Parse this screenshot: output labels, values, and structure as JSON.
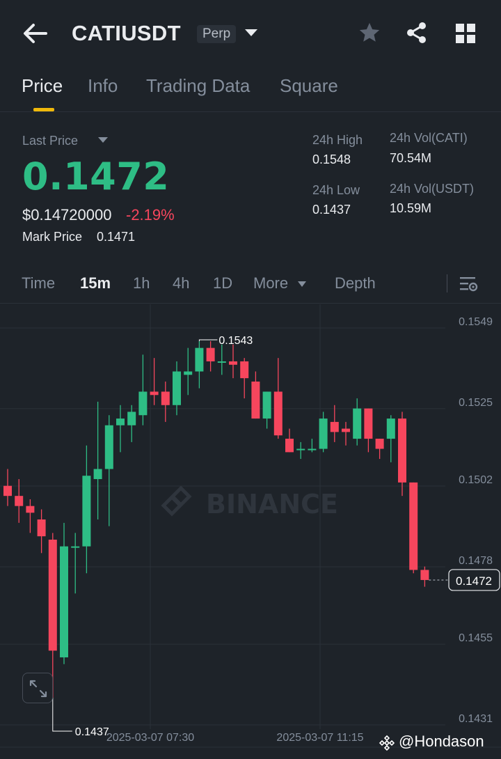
{
  "header": {
    "title": "CATIUSDT",
    "badge": "Perp"
  },
  "tabs": [
    {
      "label": "Price",
      "active": true
    },
    {
      "label": "Info",
      "active": false
    },
    {
      "label": "Trading Data",
      "active": false
    },
    {
      "label": "Square",
      "active": false
    }
  ],
  "price": {
    "last_price_label": "Last Price",
    "last_price": "0.1472",
    "usd_price": "$0.14720000",
    "change": "-2.19%",
    "mark_price_label": "Mark Price",
    "mark_price": "0.1471"
  },
  "stats": {
    "high_label": "24h High",
    "high": "0.1548",
    "low_label": "24h Low",
    "low": "0.1437",
    "vol_base_label": "24h Vol(CATI)",
    "vol_base": "70.54M",
    "vol_quote_label": "24h Vol(USDT)",
    "vol_quote": "10.59M"
  },
  "timeframes": {
    "time": "Time",
    "m15": "15m",
    "h1": "1h",
    "h4": "4h",
    "d1": "1D",
    "more": "More",
    "depth": "Depth",
    "active": "15m"
  },
  "chart": {
    "watermark": "BINANCE",
    "high_marker": "0.1543",
    "low_marker": "0.1437",
    "current_price_tag": "0.1472",
    "y_ticks": [
      "0.1549",
      "0.1525",
      "0.1502",
      "0.1478",
      "0.1455",
      "0.1431"
    ],
    "x_ticks": [
      "2025-03-07 07:30",
      "2025-03-07 11:15"
    ]
  },
  "chart_data": {
    "type": "candlestick",
    "interval": "15m",
    "ylim": [
      0.1431,
      0.1549
    ],
    "grid": true,
    "candles": [
      {
        "o": 0.15,
        "h": 0.1505,
        "l": 0.1494,
        "c": 0.1497
      },
      {
        "o": 0.1497,
        "h": 0.1502,
        "l": 0.1489,
        "c": 0.1494
      },
      {
        "o": 0.1494,
        "h": 0.1496,
        "l": 0.1486,
        "c": 0.1492
      },
      {
        "o": 0.149,
        "h": 0.1493,
        "l": 0.148,
        "c": 0.1485
      },
      {
        "o": 0.1484,
        "h": 0.1486,
        "l": 0.1437,
        "c": 0.1451
      },
      {
        "o": 0.1449,
        "h": 0.1489,
        "l": 0.1447,
        "c": 0.1482
      },
      {
        "o": 0.1482,
        "h": 0.1486,
        "l": 0.1468,
        "c": 0.1482
      },
      {
        "o": 0.1482,
        "h": 0.1512,
        "l": 0.1474,
        "c": 0.1503
      },
      {
        "o": 0.1502,
        "h": 0.1525,
        "l": 0.149,
        "c": 0.1505
      },
      {
        "o": 0.1505,
        "h": 0.1521,
        "l": 0.1488,
        "c": 0.1518
      },
      {
        "o": 0.1518,
        "h": 0.1524,
        "l": 0.151,
        "c": 0.152
      },
      {
        "o": 0.1518,
        "h": 0.1524,
        "l": 0.1513,
        "c": 0.1522
      },
      {
        "o": 0.1521,
        "h": 0.1539,
        "l": 0.1518,
        "c": 0.1528
      },
      {
        "o": 0.1528,
        "h": 0.1538,
        "l": 0.1524,
        "c": 0.1527
      },
      {
        "o": 0.1528,
        "h": 0.1531,
        "l": 0.1519,
        "c": 0.1524
      },
      {
        "o": 0.1524,
        "h": 0.1537,
        "l": 0.1521,
        "c": 0.1534
      },
      {
        "o": 0.1533,
        "h": 0.1541,
        "l": 0.1527,
        "c": 0.1534
      },
      {
        "o": 0.1534,
        "h": 0.1543,
        "l": 0.1529,
        "c": 0.1541
      },
      {
        "o": 0.1541,
        "h": 0.1543,
        "l": 0.1534,
        "c": 0.1537
      },
      {
        "o": 0.1537,
        "h": 0.1542,
        "l": 0.1533,
        "c": 0.1537
      },
      {
        "o": 0.1537,
        "h": 0.1542,
        "l": 0.1532,
        "c": 0.1536
      },
      {
        "o": 0.1537,
        "h": 0.1538,
        "l": 0.1526,
        "c": 0.1532
      },
      {
        "o": 0.1531,
        "h": 0.1534,
        "l": 0.152,
        "c": 0.152
      },
      {
        "o": 0.152,
        "h": 0.1528,
        "l": 0.1517,
        "c": 0.1528
      },
      {
        "o": 0.1528,
        "h": 0.1538,
        "l": 0.1514,
        "c": 0.1515
      },
      {
        "o": 0.1514,
        "h": 0.1517,
        "l": 0.151,
        "c": 0.151
      },
      {
        "o": 0.1511,
        "h": 0.1513,
        "l": 0.1508,
        "c": 0.1511
      },
      {
        "o": 0.1511,
        "h": 0.1514,
        "l": 0.151,
        "c": 0.1511
      },
      {
        "o": 0.1511,
        "h": 0.1522,
        "l": 0.151,
        "c": 0.152
      },
      {
        "o": 0.1519,
        "h": 0.1524,
        "l": 0.1513,
        "c": 0.1516
      },
      {
        "o": 0.1517,
        "h": 0.1519,
        "l": 0.1512,
        "c": 0.1516
      },
      {
        "o": 0.1514,
        "h": 0.1526,
        "l": 0.1512,
        "c": 0.1523
      },
      {
        "o": 0.1523,
        "h": 0.1523,
        "l": 0.151,
        "c": 0.1514
      },
      {
        "o": 0.1514,
        "h": 0.1514,
        "l": 0.1508,
        "c": 0.1511
      },
      {
        "o": 0.1514,
        "h": 0.1521,
        "l": 0.1507,
        "c": 0.152
      },
      {
        "o": 0.152,
        "h": 0.1522,
        "l": 0.1497,
        "c": 0.1501
      },
      {
        "o": 0.1501,
        "h": 0.1501,
        "l": 0.1474,
        "c": 0.1475
      },
      {
        "o": 0.1475,
        "h": 0.1476,
        "l": 0.147,
        "c": 0.1472
      }
    ]
  }
}
